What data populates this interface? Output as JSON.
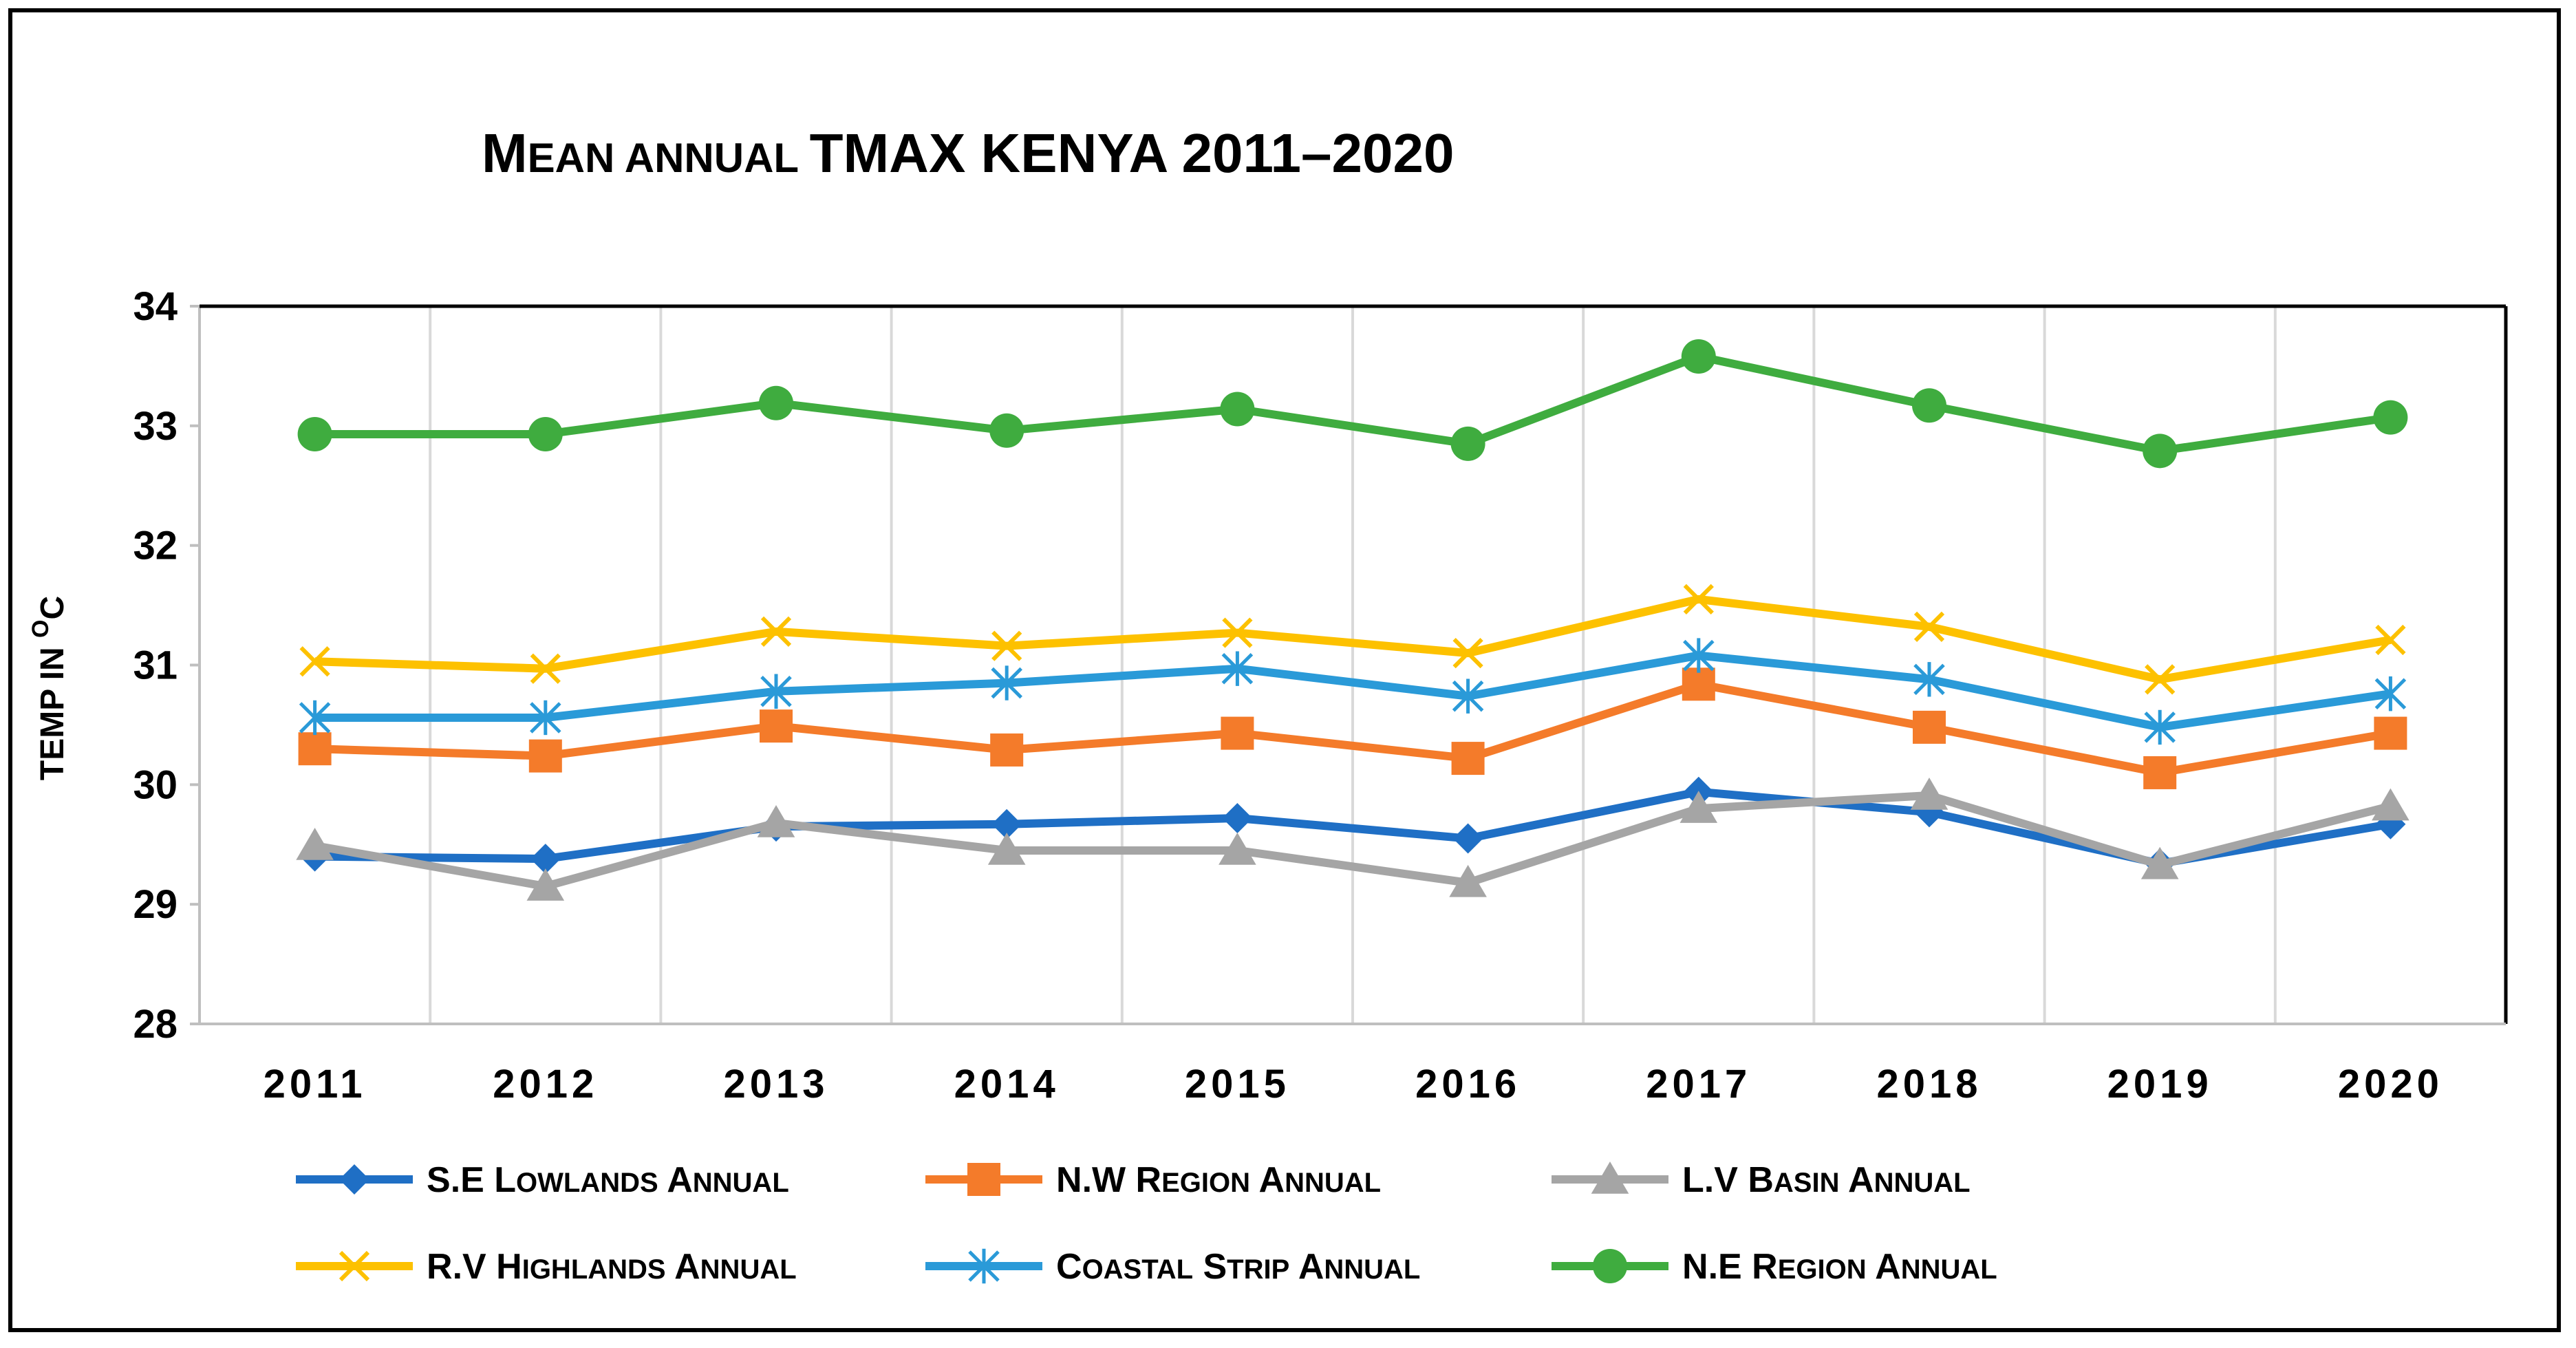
{
  "chart_data": {
    "type": "line",
    "title": "Mean annual TMAX KENYA 2011–2020",
    "xlabel": "",
    "ylabel": "Temp in oC",
    "ylabel_parts": {
      "main": "Temp in ",
      "sup": "o",
      "unit": "C"
    },
    "categories": [
      "2011",
      "2012",
      "2013",
      "2014",
      "2015",
      "2016",
      "2017",
      "2018",
      "2019",
      "2020"
    ],
    "ylim": [
      28,
      34
    ],
    "yticks": [
      "28",
      "29",
      "30",
      "31",
      "32",
      "33",
      "34"
    ],
    "grid": "vertical",
    "legend_position": "bottom",
    "series": [
      {
        "name": "S.E Lowlands Annual",
        "color": "#1f6fc5",
        "marker": "diamond",
        "values": [
          29.4,
          29.38,
          29.65,
          29.67,
          29.72,
          29.55,
          29.94,
          29.77,
          29.34,
          29.67
        ]
      },
      {
        "name": "N.W Region Annual",
        "color": "#f47b2a",
        "marker": "square",
        "values": [
          30.3,
          30.24,
          30.49,
          30.29,
          30.43,
          30.22,
          30.84,
          30.48,
          30.1,
          30.43
        ]
      },
      {
        "name": "L.V Basin Annual",
        "color": "#a5a5a5",
        "marker": "triangle",
        "values": [
          29.49,
          29.15,
          29.68,
          29.45,
          29.45,
          29.18,
          29.8,
          29.91,
          29.33,
          29.82
        ]
      },
      {
        "name": "R.V Highlands Annual",
        "color": "#fdc100",
        "marker": "x",
        "values": [
          31.03,
          30.97,
          31.28,
          31.16,
          31.27,
          31.1,
          31.55,
          31.32,
          30.88,
          31.21
        ]
      },
      {
        "name": "Coastal Strip Annual",
        "color": "#2a9ad8",
        "marker": "asterisk",
        "values": [
          30.56,
          30.56,
          30.78,
          30.85,
          30.97,
          30.74,
          31.08,
          30.88,
          30.48,
          30.76
        ]
      },
      {
        "name": "N.E Region Annual",
        "color": "#3fac3f",
        "marker": "circle",
        "values": [
          32.93,
          32.93,
          33.19,
          32.96,
          33.14,
          32.85,
          33.58,
          33.17,
          32.79,
          33.07
        ]
      }
    ]
  }
}
